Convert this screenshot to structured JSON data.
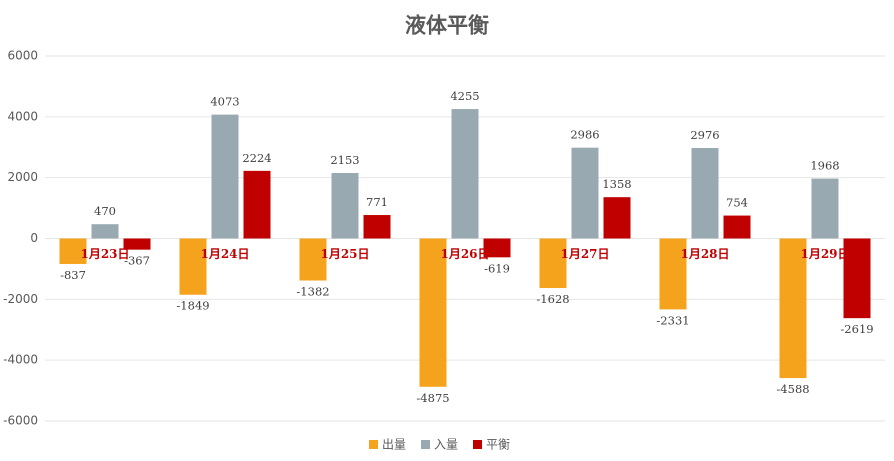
{
  "chart_data": {
    "type": "bar",
    "title": "液体平衡",
    "categories": [
      "1月23日",
      "1月24日",
      "1月25日",
      "1月26日",
      "1月27日",
      "1月28日",
      "1月29日"
    ],
    "series": [
      {
        "name": "出量",
        "color": "#f5a31c",
        "values": [
          -837,
          -1849,
          -1382,
          -4875,
          -1628,
          -2331,
          -4588
        ]
      },
      {
        "name": "入量",
        "color": "#98a9b1",
        "values": [
          470,
          4073,
          2153,
          4255,
          2986,
          2976,
          1968
        ]
      },
      {
        "name": "平衡",
        "color": "#c00000",
        "values": [
          -367,
          2224,
          771,
          -619,
          1358,
          754,
          -2619
        ]
      }
    ],
    "ylim": [
      -6000,
      6000
    ],
    "yticks": [
      -6000,
      -4000,
      -2000,
      0,
      2000,
      4000,
      6000
    ],
    "grid": true,
    "legend": "bottom"
  }
}
